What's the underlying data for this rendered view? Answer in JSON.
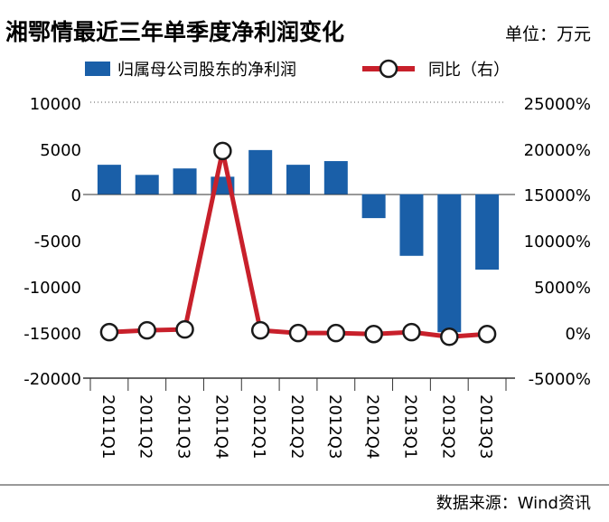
{
  "chart_data": {
    "type": "bar",
    "title": "湘鄂情最近三年单季度净利润变化",
    "unit_label": "单位：万元",
    "source": "数据来源：Wind资讯",
    "categories": [
      "2011Q1",
      "2011Q2",
      "2011Q3",
      "2011Q4",
      "2012Q1",
      "2012Q2",
      "2012Q3",
      "2012Q4",
      "2013Q1",
      "2013Q2",
      "2013Q3"
    ],
    "series": [
      {
        "name": "归属母公司股东的净利润",
        "type": "bar",
        "axis": "left",
        "color": "#1a5fa8",
        "values": [
          3200,
          2100,
          2800,
          1900,
          4800,
          3200,
          3600,
          -2600,
          -6700,
          -15000,
          -8200
        ]
      },
      {
        "name": "同比（右）",
        "type": "line",
        "axis": "right",
        "color": "#c8202b",
        "values": [
          0,
          200,
          300,
          19700,
          200,
          -100,
          -100,
          -200,
          0,
          -500,
          -200
        ]
      }
    ],
    "y_left": {
      "min": -20000,
      "max": 10000,
      "ticks": [
        "10000",
        "5000",
        "0",
        "-5000",
        "-10000",
        "-15000",
        "-20000"
      ]
    },
    "y_right": {
      "min": -5000,
      "max": 25000,
      "ticks": [
        "25000%",
        "20000%",
        "15000%",
        "10000%",
        "5000%",
        "0%",
        "-5000%"
      ]
    }
  }
}
